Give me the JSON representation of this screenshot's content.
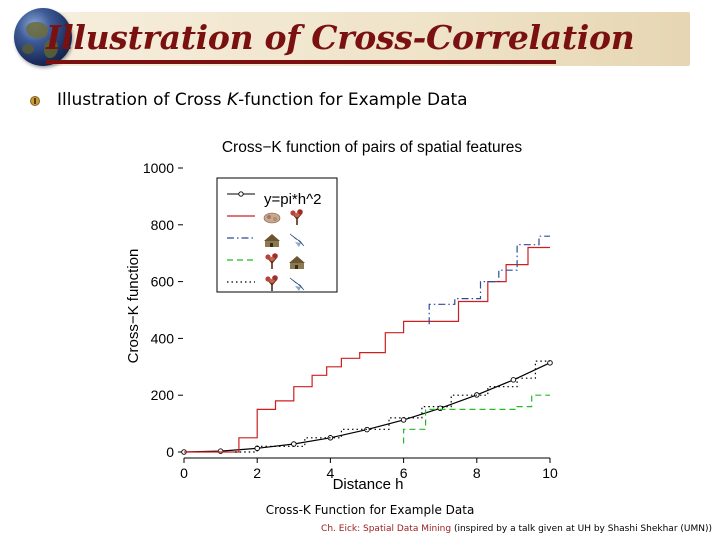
{
  "slide": {
    "title": "Illustration of Cross-Correlation",
    "bullet_pre": "Illustration of Cross ",
    "bullet_k": "K",
    "bullet_post": "-function for Example Data",
    "caption": "Cross-K Function for Example Data",
    "footer_author": "Ch. Eick: Spatial Data Mining",
    "footer_note": " (inspired by a talk given at UH by Shashi Shekhar (UMN))"
  },
  "colors": {
    "title": "#7a1010",
    "red": "#cc2020",
    "blue": "#2b4c9a",
    "green": "#22bb22",
    "black": "#000000"
  },
  "chart_data": {
    "type": "line",
    "title": "Cross−K function of pairs of spatial features",
    "xlabel": "Distance h",
    "ylabel": "Cross−K function",
    "xlim": [
      0,
      10
    ],
    "ylim": [
      0,
      1000
    ],
    "xticks": [
      0,
      2,
      4,
      6,
      8,
      10
    ],
    "yticks": [
      0,
      200,
      400,
      600,
      800,
      1000
    ],
    "legend_position": "top-left",
    "legend_icons": [
      [
        "bush-icon",
        "tree-icon"
      ],
      [
        "house-icon",
        "bird-icon"
      ],
      [
        "tree-icon",
        "house-icon"
      ],
      [
        "tree-icon",
        "bird-icon"
      ]
    ],
    "series": [
      {
        "name": "y=pi*h^2",
        "style": "solid-circles",
        "color": "#000000",
        "x": [
          0,
          1,
          2,
          3,
          4,
          5,
          6,
          7,
          8,
          9,
          10
        ],
        "y": [
          0,
          3,
          13,
          28,
          50,
          79,
          113,
          154,
          201,
          254,
          314
        ]
      },
      {
        "style": "solid",
        "color": "#cc2020",
        "x": [
          0,
          1.5,
          1.5,
          2,
          2,
          2.5,
          2.5,
          3,
          3,
          3.5,
          3.5,
          3.9,
          3.9,
          4.3,
          4.3,
          4.8,
          4.8,
          5.5,
          5.5,
          6.0,
          6.0,
          7.5,
          7.5,
          8.3,
          8.3,
          8.8,
          8.8,
          9.4,
          9.4,
          10
        ],
        "y": [
          0,
          0,
          50,
          50,
          150,
          150,
          180,
          180,
          230,
          230,
          270,
          270,
          300,
          300,
          330,
          330,
          350,
          350,
          420,
          420,
          460,
          460,
          530,
          530,
          600,
          600,
          660,
          660,
          720,
          720
        ]
      },
      {
        "style": "dashdot",
        "color": "#2b4c9a",
        "x": [
          6.7,
          6.7,
          7.4,
          7.4,
          8.1,
          8.1,
          8.6,
          8.6,
          9.1,
          9.1,
          9.7,
          9.7,
          10
        ],
        "y": [
          450,
          520,
          520,
          540,
          540,
          600,
          600,
          640,
          640,
          730,
          730,
          760,
          760
        ]
      },
      {
        "style": "dashed",
        "color": "#22bb22",
        "x": [
          6.0,
          6.0,
          6.6,
          6.6,
          8.1,
          8.1,
          9.1,
          9.1,
          9.5,
          9.5,
          10
        ],
        "y": [
          30,
          80,
          80,
          150,
          150,
          150,
          150,
          160,
          160,
          200,
          200
        ]
      },
      {
        "style": "dotted",
        "color": "#000000",
        "x": [
          1.4,
          2,
          2,
          3.3,
          3.3,
          4.3,
          4.3,
          5.6,
          5.6,
          6.5,
          6.5,
          7.3,
          7.3,
          8.3,
          8.3,
          9.1,
          9.1,
          9.6,
          9.6,
          10
        ],
        "y": [
          0,
          0,
          20,
          20,
          50,
          50,
          80,
          80,
          120,
          120,
          160,
          160,
          200,
          200,
          230,
          230,
          260,
          260,
          320,
          320
        ]
      }
    ]
  }
}
